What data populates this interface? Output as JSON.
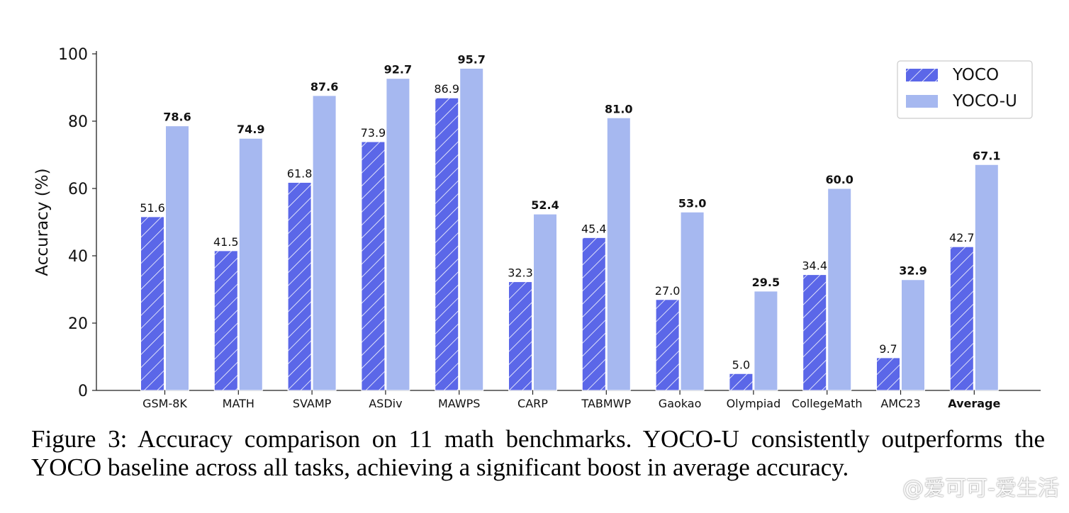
{
  "chart_data": {
    "type": "bar",
    "categories": [
      "GSM-8K",
      "MATH",
      "SVAMP",
      "ASDiv",
      "MAWPS",
      "CARP",
      "TABMWP",
      "Gaokao",
      "Olympiad",
      "CollegeMath",
      "AMC23",
      "Average"
    ],
    "series": [
      {
        "name": "YOCO",
        "values": [
          51.6,
          41.5,
          61.8,
          73.9,
          86.9,
          32.3,
          45.4,
          27.0,
          5.0,
          34.4,
          9.7,
          42.7
        ],
        "color": "#5b67e8",
        "hatch": true,
        "label_format": "normal"
      },
      {
        "name": "YOCO-U",
        "values": [
          78.6,
          74.9,
          87.6,
          92.7,
          95.7,
          52.4,
          81.0,
          53.0,
          29.5,
          60.0,
          32.9,
          67.1
        ],
        "color": "#a6b8f0",
        "hatch": false,
        "label_format": "bold"
      }
    ],
    "ylabel": "Accuracy (%)",
    "xlabel": "",
    "ylim": [
      0,
      100
    ],
    "yticks": [
      0,
      20,
      40,
      60,
      80,
      100
    ],
    "grid": false,
    "legend_position": "top-right",
    "bold_categories": [
      "Average"
    ]
  },
  "caption": "Figure 3: Accuracy comparison on 11 math benchmarks. YOCO-U consistently outperforms the YOCO baseline across all tasks, achieving a significant boost in average accuracy.",
  "watermark": "@爱可可-爱生活"
}
